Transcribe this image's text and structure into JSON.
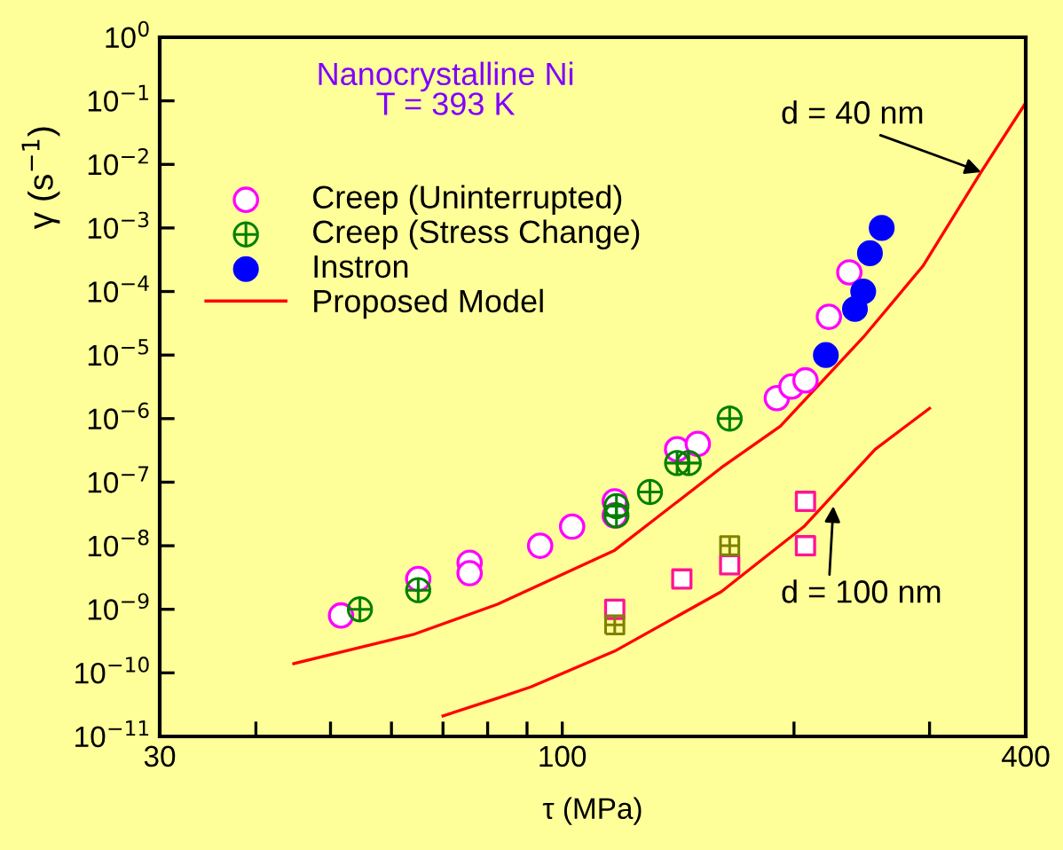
{
  "chart_data": {
    "type": "scatter",
    "xlabel": "τ (MPa)",
    "ylabel": "γ (s$^{−1}$)",
    "log": "xy",
    "xlim": [
      30,
      400
    ],
    "ylim": [
      1e-11,
      1
    ],
    "xticks": [
      30,
      {
        "value": 40,
        "label": null
      },
      {
        "value": 50,
        "label": null
      },
      {
        "value": 60,
        "label": null
      },
      {
        "value": 70,
        "label": null
      },
      {
        "value": 80,
        "label": null
      },
      {
        "value": 90,
        "label": null
      },
      100,
      {
        "value": 200,
        "label": null
      },
      {
        "value": 300,
        "label": null
      },
      400
    ],
    "yticks": [
      {
        "value": 1e-11,
        "label": "10$^{−11}$"
      },
      {
        "value": 1e-10,
        "label": "10$^{−10}$"
      },
      {
        "value": 1e-09,
        "label": "10$^{−9}$"
      },
      {
        "value": 1e-08,
        "label": "10$^{−8}$"
      },
      {
        "value": 1e-07,
        "label": "10$^{−7}$"
      },
      {
        "value": 1e-06,
        "label": "10$^{−6}$"
      },
      {
        "value": 1e-05,
        "label": "10$^{−5}$"
      },
      {
        "value": 0.0001,
        "label": "10$^{−4}$"
      },
      {
        "value": 0.001,
        "label": "10$^{−3}$"
      },
      {
        "value": 0.01,
        "label": "10$^{−2}$"
      },
      {
        "value": 0.1,
        "label": "10$^{−1}$"
      },
      {
        "value": 1,
        "label": "10$^{0}$"
      }
    ],
    "grid": false,
    "legend": "top left",
    "series": [
      {
        "name": "Creep (Uninterrupted)",
        "color": "#ff00ff",
        "marker": "circle-open",
        "x": [
          51.6,
          65,
          75.8,
          75.8,
          93.6,
          103,
          117,
          117,
          141,
          150,
          190,
          198.5,
          207,
          222,
          236
        ],
        "values": [
          8e-10,
          3e-09,
          5.4e-09,
          3.7e-09,
          1e-08,
          2e-08,
          5e-08,
          3e-08,
          3.3e-07,
          4e-07,
          2.1e-06,
          3.2e-06,
          4e-06,
          4e-05,
          0.0002
        ]
      },
      {
        "color": "#ff1493",
        "marker": "square-open",
        "x": [
          117,
          143,
          165,
          207,
          207
        ],
        "values": [
          1e-09,
          3e-09,
          5e-09,
          5e-08,
          1e-08
        ]
      },
      {
        "name": "Creep (Stress Change)",
        "color": "#008000",
        "marker": "cross",
        "x": [
          54.6,
          65,
          117.6,
          117.6,
          130,
          141,
          146,
          165
        ],
        "values": [
          1e-09,
          2e-09,
          4.2e-08,
          3e-08,
          7e-08,
          2e-07,
          2e-07,
          1e-06
        ]
      },
      {
        "color": "#808000",
        "marker": "cross",
        "x": [
          117,
          165
        ],
        "values": [
          5.7e-10,
          1e-08
        ]
      },
      {
        "name": "Instron",
        "color": "#0000ff",
        "marker": "circle",
        "x": [
          220,
          240,
          246,
          251,
          260
        ],
        "values": [
          1e-05,
          5.3e-05,
          0.0001,
          0.0004,
          0.001
        ]
      },
      {
        "name": "Proposed Model",
        "type": "line",
        "color": "#ff0000",
        "marker": "none",
        "x": [
          44.8,
          54.5,
          64,
          82.4,
          117,
          161,
          192,
          246,
          294,
          350,
          400
        ],
        "values": [
          1.4e-10,
          2.5e-10,
          4e-10,
          1.2e-09,
          8.5e-09,
          1.7e-07,
          7.6e-07,
          1.9e-05,
          0.00025,
          0.0076,
          0.093
        ]
      },
      {
        "type": "line",
        "color": "#ff0000",
        "marker": "none",
        "x": [
          70,
          82.4,
          91,
          117,
          161,
          206,
          255,
          300
        ],
        "values": [
          2.1e-11,
          4e-11,
          6e-11,
          2.2e-10,
          1.9e-09,
          2e-08,
          3.3e-07,
          1.45e-06
        ]
      }
    ],
    "annotations": [
      "Nanocrystalline Ni\nT = 393 K",
      {
        "text": "d = 40 nm",
        "x": 350,
        "y": 0.0076
      },
      {
        "text": "d = 100 nm",
        "x": 225,
        "y": 4.2e-08
      }
    ]
  }
}
